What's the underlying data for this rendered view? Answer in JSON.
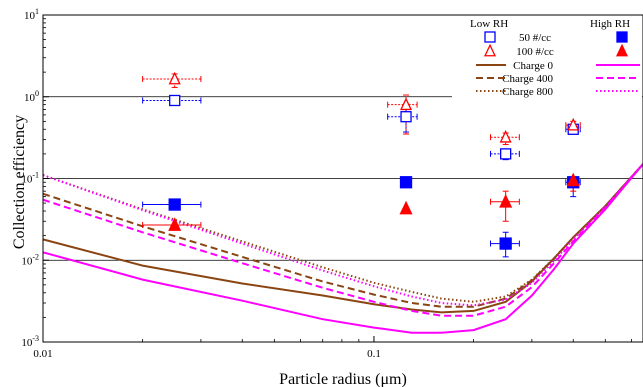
{
  "chart_data": {
    "type": "scatter",
    "xlabel": "Particle radius (μm)",
    "ylabel": "Collection efficiency",
    "x_scale": "log",
    "y_scale": "log",
    "xlim": [
      0.01,
      0.65
    ],
    "ylim": [
      0.001,
      10
    ],
    "x_ticks": [
      {
        "value": 0.01,
        "label": "0.01"
      },
      {
        "value": 0.1,
        "label": "0.1"
      }
    ],
    "y_ticks": [
      {
        "value": 0.001,
        "base": "10",
        "exp": "-3"
      },
      {
        "value": 0.01,
        "base": "10",
        "exp": "-2"
      },
      {
        "value": 0.1,
        "base": "10",
        "exp": "-1"
      },
      {
        "value": 1,
        "base": "10",
        "exp": "0"
      },
      {
        "value": 10,
        "base": "10",
        "exp": "1"
      }
    ],
    "grid": "horizontal",
    "legend": {
      "position": "top-right",
      "low_header": "Low RH",
      "high_header": "High RH",
      "markers": [
        {
          "label": "50 #/cc",
          "shape": "square",
          "color": "#0000ff"
        },
        {
          "label": "100 #/cc",
          "shape": "triangle",
          "color": "#ff0000"
        }
      ],
      "lines": [
        {
          "label": "Charge 0",
          "dash": "solid"
        },
        {
          "label": "Charge 400",
          "dash": "dashed"
        },
        {
          "label": "Charge 800",
          "dash": "dotted"
        }
      ],
      "low_line_color": "#8b4513",
      "high_line_color": "#ff00ff"
    },
    "series": [
      {
        "label": "50 #/cc",
        "condition": "Low RH",
        "shape": "square",
        "filled": false,
        "color": "#0000ff",
        "points": [
          {
            "x": 0.025,
            "y": 0.9,
            "yerr": [
              0.82,
              1.0
            ],
            "xerr": [
              0.02,
              0.03
            ]
          },
          {
            "x": 0.125,
            "y": 0.57,
            "yerr": [
              0.37,
              0.8
            ],
            "xerr": [
              0.11,
              0.135
            ]
          },
          {
            "x": 0.25,
            "y": 0.2,
            "yerr": [
              0.17,
              0.23
            ],
            "xerr": [
              0.225,
              0.275
            ]
          },
          {
            "x": 0.4,
            "y": 0.4,
            "yerr": [
              0.35,
              0.45
            ],
            "xerr": [
              0.38,
              0.42
            ]
          }
        ]
      },
      {
        "label": "100 #/cc",
        "condition": "Low RH",
        "shape": "triangle",
        "filled": false,
        "color": "#ff0000",
        "points": [
          {
            "x": 0.025,
            "y": 1.65,
            "yerr": [
              1.3,
              1.9
            ],
            "xerr": [
              0.02,
              0.03
            ]
          },
          {
            "x": 0.125,
            "y": 0.8,
            "yerr": [
              0.35,
              1.05
            ],
            "xerr": [
              0.11,
              0.135
            ]
          },
          {
            "x": 0.25,
            "y": 0.32,
            "yerr": [
              0.26,
              0.36
            ],
            "xerr": [
              0.225,
              0.275
            ]
          },
          {
            "x": 0.4,
            "y": 0.45,
            "yerr": [
              0.4,
              0.5
            ],
            "xerr": [
              0.38,
              0.42
            ]
          }
        ]
      },
      {
        "label": "50 #/cc",
        "condition": "High RH",
        "shape": "square",
        "filled": true,
        "color": "#0000ff",
        "points": [
          {
            "x": 0.025,
            "y": 0.048,
            "xerr": [
              0.02,
              0.03
            ]
          },
          {
            "x": 0.125,
            "y": 0.09
          },
          {
            "x": 0.25,
            "y": 0.016,
            "yerr": [
              0.011,
              0.022
            ],
            "xerr": [
              0.225,
              0.275
            ]
          },
          {
            "x": 0.4,
            "y": 0.09,
            "yerr": [
              0.06,
              0.1
            ],
            "xerr": [
              0.38,
              0.42
            ]
          }
        ]
      },
      {
        "label": "100 #/cc",
        "condition": "High RH",
        "shape": "triangle",
        "filled": true,
        "color": "#ff0000",
        "points": [
          {
            "x": 0.025,
            "y": 0.027,
            "xerr": [
              0.02,
              0.03
            ]
          },
          {
            "x": 0.125,
            "y": 0.043
          },
          {
            "x": 0.25,
            "y": 0.052,
            "yerr": [
              0.03,
              0.07
            ],
            "xerr": [
              0.225,
              0.275
            ]
          },
          {
            "x": 0.4,
            "y": 0.095,
            "yerr": [
              0.07,
              0.1
            ]
          }
        ]
      }
    ],
    "curves": [
      {
        "label": "Charge 0",
        "condition": "Low RH",
        "dash": "solid",
        "color": "#8b4513",
        "x": [
          0.01,
          0.02,
          0.04,
          0.07,
          0.1,
          0.13,
          0.16,
          0.2,
          0.25,
          0.3,
          0.35,
          0.4,
          0.5,
          0.65
        ],
        "y": [
          0.018,
          0.0086,
          0.0052,
          0.0037,
          0.0029,
          0.0025,
          0.0023,
          0.0024,
          0.0031,
          0.0055,
          0.0105,
          0.019,
          0.046,
          0.15
        ]
      },
      {
        "label": "Charge 400",
        "condition": "Low RH",
        "dash": "dashed",
        "color": "#8b4513",
        "x": [
          0.01,
          0.02,
          0.04,
          0.07,
          0.1,
          0.13,
          0.16,
          0.2,
          0.25,
          0.3,
          0.35,
          0.4,
          0.5,
          0.65
        ],
        "y": [
          0.065,
          0.026,
          0.011,
          0.0055,
          0.0038,
          0.003,
          0.0027,
          0.0027,
          0.0034,
          0.0057,
          0.0105,
          0.019,
          0.046,
          0.15
        ]
      },
      {
        "label": "Charge 800",
        "condition": "Low RH",
        "dash": "dotted",
        "color": "#8b4513",
        "x": [
          0.01,
          0.02,
          0.04,
          0.07,
          0.1,
          0.13,
          0.16,
          0.2,
          0.25,
          0.3,
          0.35,
          0.4,
          0.5,
          0.65
        ],
        "y": [
          0.11,
          0.042,
          0.017,
          0.0082,
          0.0053,
          0.0041,
          0.0034,
          0.0031,
          0.0036,
          0.0058,
          0.0106,
          0.019,
          0.046,
          0.15
        ]
      },
      {
        "label": "Charge 0",
        "condition": "High RH",
        "dash": "solid",
        "color": "#ff00ff",
        "x": [
          0.01,
          0.02,
          0.04,
          0.07,
          0.1,
          0.13,
          0.16,
          0.2,
          0.25,
          0.3,
          0.35,
          0.4,
          0.5,
          0.65
        ],
        "y": [
          0.0125,
          0.0058,
          0.0032,
          0.0019,
          0.0015,
          0.0013,
          0.0013,
          0.0014,
          0.0019,
          0.0037,
          0.0078,
          0.016,
          0.042,
          0.15
        ]
      },
      {
        "label": "Charge 400",
        "condition": "High RH",
        "dash": "dashed",
        "color": "#ff00ff",
        "x": [
          0.01,
          0.02,
          0.04,
          0.07,
          0.1,
          0.13,
          0.16,
          0.2,
          0.25,
          0.3,
          0.35,
          0.4,
          0.5,
          0.65
        ],
        "y": [
          0.055,
          0.022,
          0.0092,
          0.0046,
          0.0031,
          0.0024,
          0.0021,
          0.0021,
          0.0027,
          0.0047,
          0.0092,
          0.017,
          0.044,
          0.15
        ]
      },
      {
        "label": "Charge 800",
        "condition": "High RH",
        "dash": "dotted",
        "color": "#ff00ff",
        "x": [
          0.01,
          0.02,
          0.04,
          0.07,
          0.1,
          0.13,
          0.16,
          0.2,
          0.25,
          0.3,
          0.35,
          0.4,
          0.5,
          0.65
        ],
        "y": [
          0.11,
          0.041,
          0.016,
          0.0075,
          0.0048,
          0.0036,
          0.003,
          0.0028,
          0.0033,
          0.0053,
          0.0098,
          0.018,
          0.045,
          0.15
        ]
      }
    ]
  }
}
